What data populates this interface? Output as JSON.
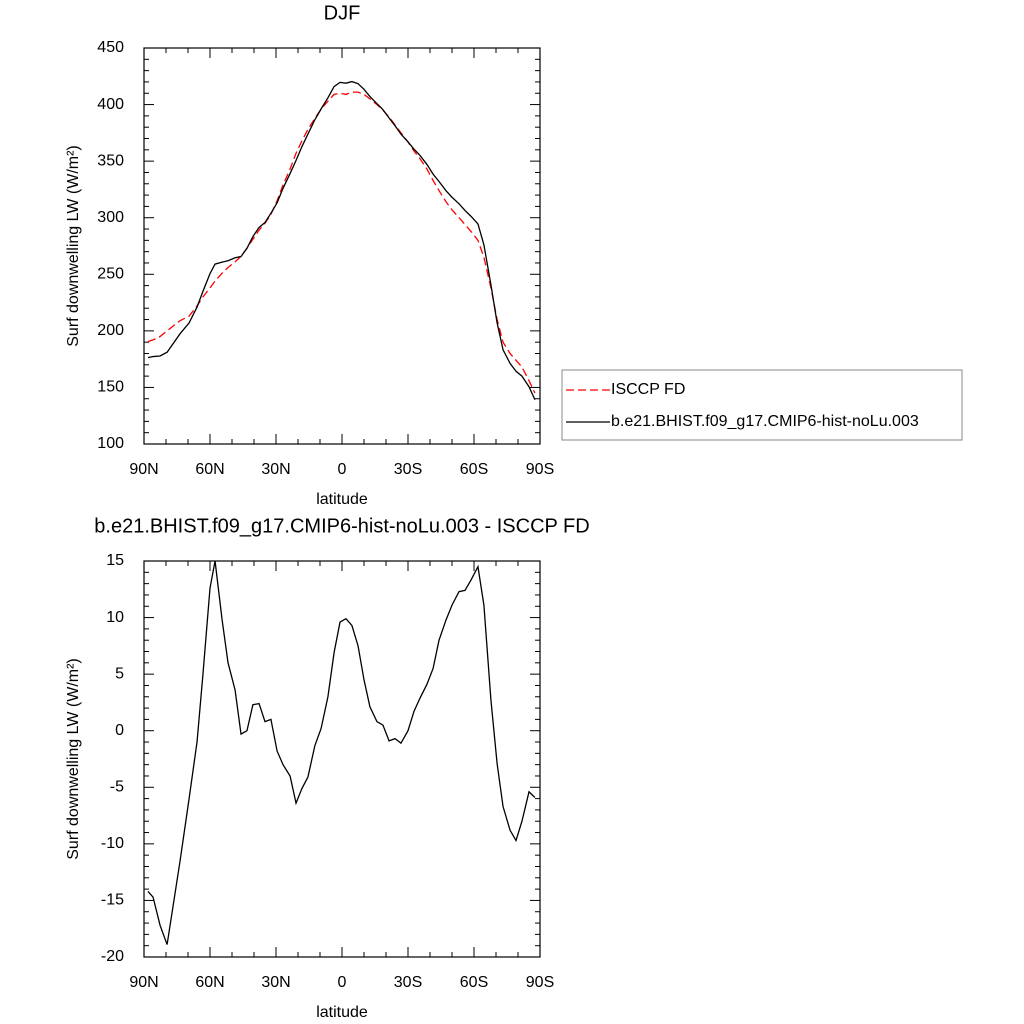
{
  "chart_data": [
    {
      "type": "line",
      "title": "DJF",
      "x_label": "latitude",
      "y_label": "Surf downwelling LW (W/m²)",
      "x": [
        88.2,
        85.9,
        82.7,
        79.5,
        73.6,
        69.5,
        65.9,
        63.2,
        60,
        57.7,
        54.5,
        51.8,
        48.6,
        45.9,
        43.2,
        40.5,
        37.7,
        35,
        32.3,
        29.5,
        26.8,
        23.6,
        20.9,
        18.2,
        15.5,
        12.3,
        9.5,
        6.4,
        3.6,
        0.9,
        -1.8,
        -4.5,
        -7.3,
        -10,
        -12.7,
        -15.9,
        -18.6,
        -21.4,
        -24.1,
        -26.8,
        -30,
        -32.7,
        -35.5,
        -38.6,
        -41.4,
        -44.1,
        -47.3,
        -50,
        -53.2,
        -55.9,
        -58.6,
        -61.8,
        -64.5,
        -67.7,
        -70.5,
        -73.2,
        -76.4,
        -79.1,
        -81.8,
        -85,
        -87.7
      ],
      "xlim": [
        90,
        -90
      ],
      "xticks": [
        {
          "value": 90,
          "label": "90N"
        },
        {
          "value": 60,
          "label": "60N"
        },
        {
          "value": 30,
          "label": "30N"
        },
        0,
        {
          "value": -30,
          "label": "30S"
        },
        {
          "value": -60,
          "label": "60S"
        },
        {
          "value": -90,
          "label": "90S"
        }
      ],
      "ylim": [
        100,
        450
      ],
      "yticks": [
        100,
        150,
        200,
        250,
        300,
        350,
        400,
        450
      ],
      "legend": "right",
      "series": [
        {
          "name": "ISCCP FD",
          "color": "#ff0000",
          "dash": "dashed",
          "values": [
            190.5,
            192,
            195,
            200,
            209,
            213,
            222,
            230,
            238,
            244,
            251,
            256,
            261,
            266,
            273,
            281,
            289,
            295,
            303,
            315,
            329,
            343,
            357,
            368,
            378,
            388,
            396,
            403,
            409,
            410,
            409,
            411,
            411,
            409,
            405,
            400,
            395,
            389,
            382,
            375,
            367,
            359,
            352,
            343,
            333,
            324,
            314,
            307,
            300,
            294,
            288,
            280,
            265,
            238,
            210,
            190,
            180,
            174,
            168,
            156,
            145
          ]
        },
        {
          "name": "b.e21.BHIST.f09_g17.CMIP6-hist-noLu.003",
          "color": "#000000",
          "values": [
            176.3,
            177.3,
            177.8,
            181.1,
            197.5,
            207,
            221,
            235,
            250.6,
            259,
            260.8,
            262,
            264.6,
            265.7,
            273,
            283.3,
            291.4,
            295.8,
            304,
            313.2,
            326,
            339,
            350.6,
            362.9,
            373.9,
            386.7,
            396.2,
            406,
            415.9,
            419.6,
            418.9,
            420.3,
            418.5,
            413.5,
            407.1,
            400.8,
            395.5,
            388.1,
            381.3,
            373.9,
            367,
            360.7,
            354.9,
            347.1,
            338.5,
            332,
            323.8,
            318.1,
            312.3,
            306.4,
            301.3,
            294.5,
            276.1,
            240.7,
            207.1,
            183.3,
            171.2,
            164.3,
            160,
            150.6,
            139.1
          ]
        }
      ]
    },
    {
      "type": "line",
      "title": "b.e21.BHIST.f09_g17.CMIP6-hist-noLu.003 - ISCCP FD",
      "x_label": "latitude",
      "y_label": "Surf downwelling LW (W/m²)",
      "x": [
        88.2,
        85.9,
        82.7,
        79.5,
        73.6,
        69.5,
        65.9,
        63.2,
        60,
        57.7,
        54.5,
        51.8,
        48.6,
        45.9,
        43.2,
        40.5,
        37.7,
        35,
        32.3,
        29.5,
        26.8,
        23.6,
        20.9,
        18.2,
        15.5,
        12.3,
        9.5,
        6.4,
        3.6,
        0.9,
        -1.8,
        -4.5,
        -7.3,
        -10,
        -12.7,
        -15.9,
        -18.6,
        -21.4,
        -24.1,
        -26.8,
        -30,
        -32.7,
        -35.5,
        -38.6,
        -41.4,
        -44.1,
        -47.3,
        -50,
        -53.2,
        -55.9,
        -58.6,
        -61.8,
        -64.5,
        -67.7,
        -70.5,
        -73.2,
        -76.4,
        -79.1,
        -81.8,
        -85,
        -87.7
      ],
      "xlim": [
        90,
        -90
      ],
      "xticks": [
        {
          "value": 90,
          "label": "90N"
        },
        {
          "value": 60,
          "label": "60N"
        },
        {
          "value": 30,
          "label": "30N"
        },
        0,
        {
          "value": -30,
          "label": "30S"
        },
        {
          "value": -60,
          "label": "60S"
        },
        {
          "value": -90,
          "label": "90S"
        }
      ],
      "ylim": [
        -20,
        15
      ],
      "yticks": [
        -20,
        -15,
        -10,
        -5,
        0,
        5,
        10,
        15
      ],
      "color": "#000000",
      "values": [
        -14.2,
        -14.7,
        -17.2,
        -18.9,
        -11.5,
        -6,
        -1,
        5,
        12.6,
        15,
        9.8,
        6,
        3.6,
        -0.3,
        0,
        2.3,
        2.4,
        0.8,
        1,
        -1.8,
        -3,
        -4,
        -6.4,
        -5.1,
        -4.1,
        -1.3,
        0.2,
        3,
        6.9,
        9.6,
        9.9,
        9.3,
        7.5,
        4.5,
        2.1,
        0.8,
        0.5,
        -0.9,
        -0.7,
        -1.1,
        0,
        1.7,
        2.9,
        4.1,
        5.5,
        8,
        9.8,
        11.1,
        12.3,
        12.4,
        13.3,
        14.5,
        11.1,
        2.7,
        -2.9,
        -6.7,
        -8.8,
        -9.7,
        -8,
        -5.4,
        -5.9
      ]
    }
  ]
}
